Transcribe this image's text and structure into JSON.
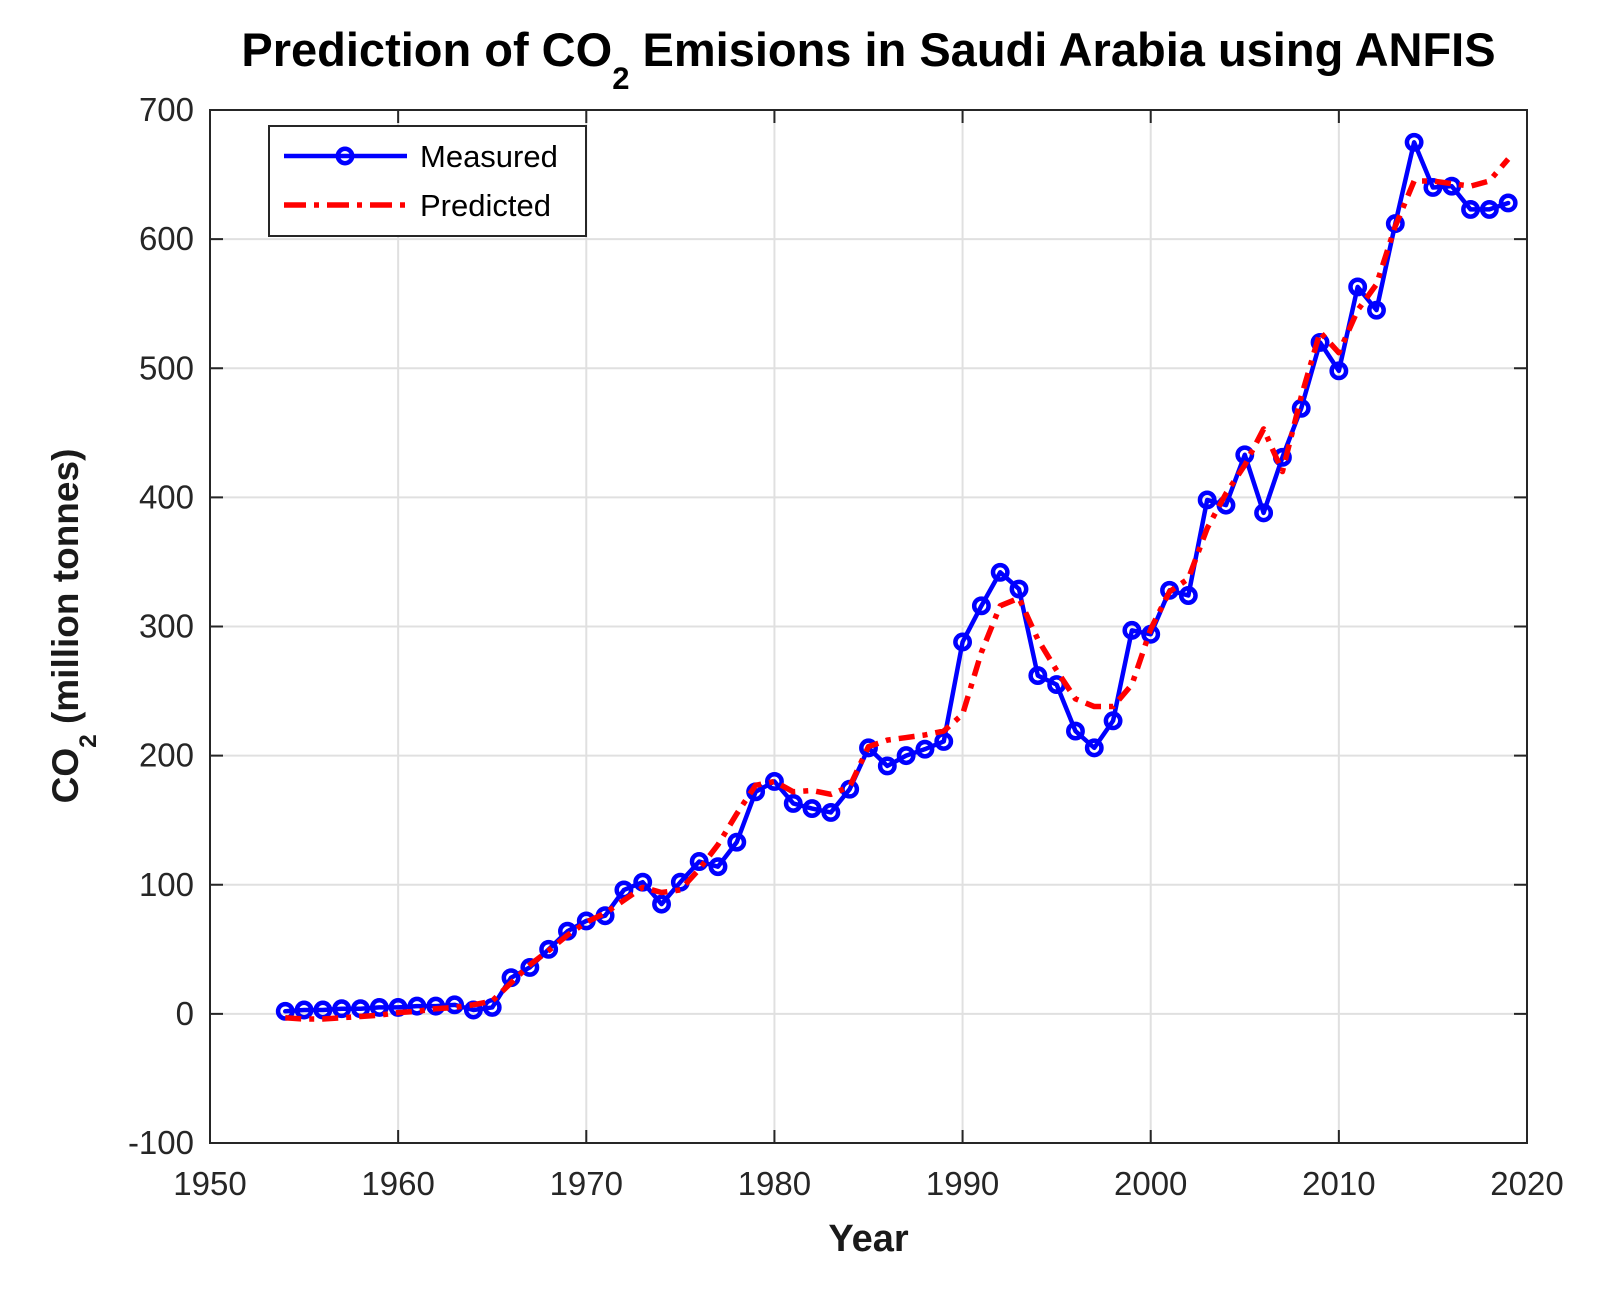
{
  "chart_data": {
    "type": "line",
    "title": {
      "prefix": "Prediction of CO",
      "sub": "2",
      "suffix": " Emisions in Saudi Arabia using ANFIS"
    },
    "xlabel": "Year",
    "ylabel": {
      "prefix": "CO",
      "sub": "2",
      "suffix": " (million tonnes)"
    },
    "xlim": [
      1950,
      2020
    ],
    "ylim": [
      -100,
      700
    ],
    "xticks": [
      1950,
      1960,
      1970,
      1980,
      1990,
      2000,
      2010,
      2020
    ],
    "yticks": [
      -100,
      0,
      100,
      200,
      300,
      400,
      500,
      600,
      700
    ],
    "grid": true,
    "legend_position": "northwest",
    "axis_color": "#262626",
    "grid_color": "#e0e0e0",
    "background_color": "#ffffff",
    "x": [
      1954,
      1955,
      1956,
      1957,
      1958,
      1959,
      1960,
      1961,
      1962,
      1963,
      1964,
      1965,
      1966,
      1967,
      1968,
      1969,
      1970,
      1971,
      1972,
      1973,
      1974,
      1975,
      1976,
      1977,
      1978,
      1979,
      1980,
      1981,
      1982,
      1983,
      1984,
      1985,
      1986,
      1987,
      1988,
      1989,
      1990,
      1991,
      1992,
      1993,
      1994,
      1995,
      1996,
      1997,
      1998,
      1999,
      2000,
      2001,
      2002,
      2003,
      2004,
      2005,
      2006,
      2007,
      2008,
      2009,
      2010,
      2011,
      2012,
      2013,
      2014,
      2015,
      2016,
      2017,
      2018,
      2019
    ],
    "series": [
      {
        "name": "Measured",
        "color": "#0000ff",
        "style": "solid",
        "marker": "circle",
        "values": [
          2,
          3,
          3,
          4,
          4,
          5,
          5,
          6,
          6,
          7,
          3,
          5,
          28,
          36,
          50,
          64,
          72,
          76,
          96,
          102,
          85,
          102,
          118,
          114,
          133,
          172,
          180,
          163,
          159,
          156,
          174,
          206,
          192,
          200,
          205,
          211,
          288,
          316,
          342,
          329,
          262,
          255,
          219,
          206,
          227,
          297,
          294,
          328,
          324,
          398,
          394,
          433,
          388,
          431,
          469,
          520,
          498,
          563,
          545,
          612,
          675,
          640,
          641,
          623,
          623,
          628
        ]
      },
      {
        "name": "Predicted",
        "color": "#ff0000",
        "style": "dashdot",
        "marker": "none",
        "values": [
          -3,
          -4,
          -4,
          -3,
          -2,
          -1,
          1,
          2,
          4,
          5,
          7,
          10,
          24,
          38,
          49,
          61,
          71,
          78,
          88,
          98,
          94,
          96,
          112,
          131,
          155,
          177,
          180,
          172,
          173,
          170,
          176,
          207,
          212,
          214,
          216,
          219,
          232,
          280,
          316,
          322,
          290,
          266,
          244,
          238,
          238,
          255,
          298,
          327,
          337,
          376,
          403,
          425,
          453,
          420,
          478,
          528,
          512,
          545,
          565,
          610,
          645,
          645,
          643,
          641,
          645,
          662
        ]
      }
    ]
  }
}
